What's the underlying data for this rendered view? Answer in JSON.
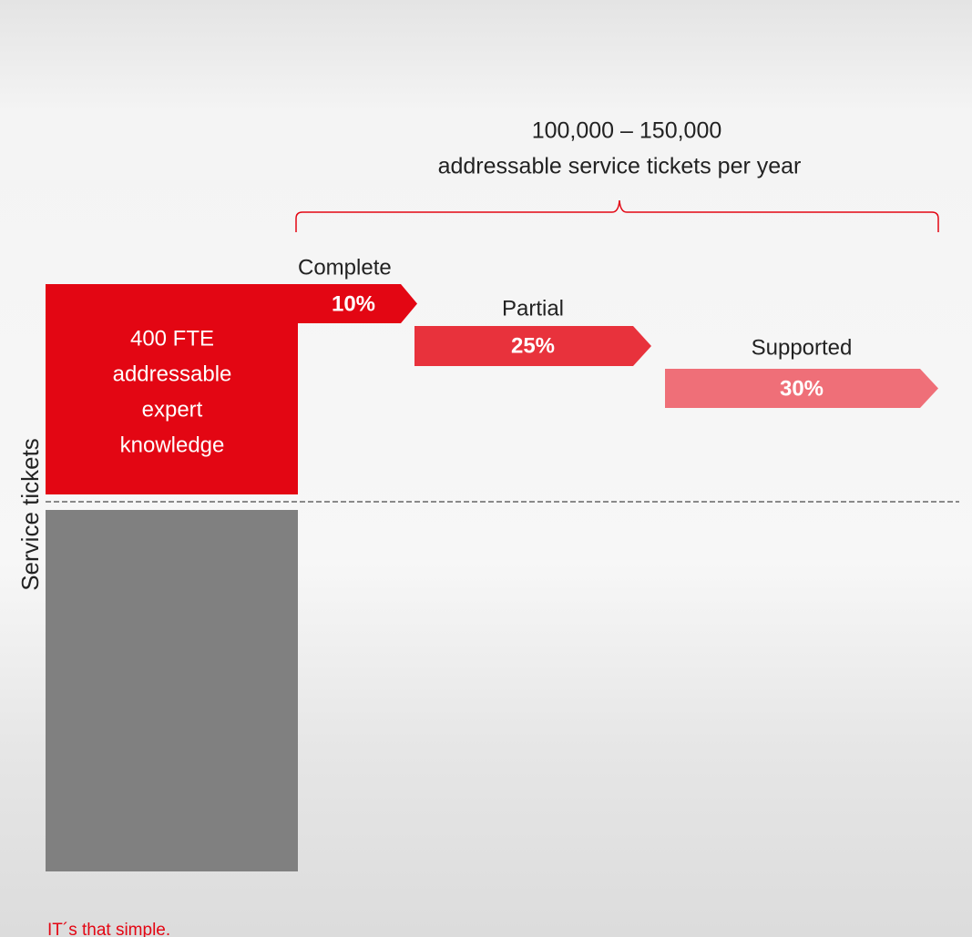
{
  "header": {
    "range": "100,000 – 150,000",
    "subtitle": "addressable service tickets per year"
  },
  "axis_label": "Service tickets",
  "expert_box": {
    "lines": [
      "400 FTE",
      "addressable",
      "expert",
      "knowledge"
    ]
  },
  "stages": [
    {
      "label": "Complete",
      "value": "10%"
    },
    {
      "label": "Partial",
      "value": "25%"
    },
    {
      "label": "Supported",
      "value": "30%"
    }
  ],
  "footer": "IT´s that simple."
}
